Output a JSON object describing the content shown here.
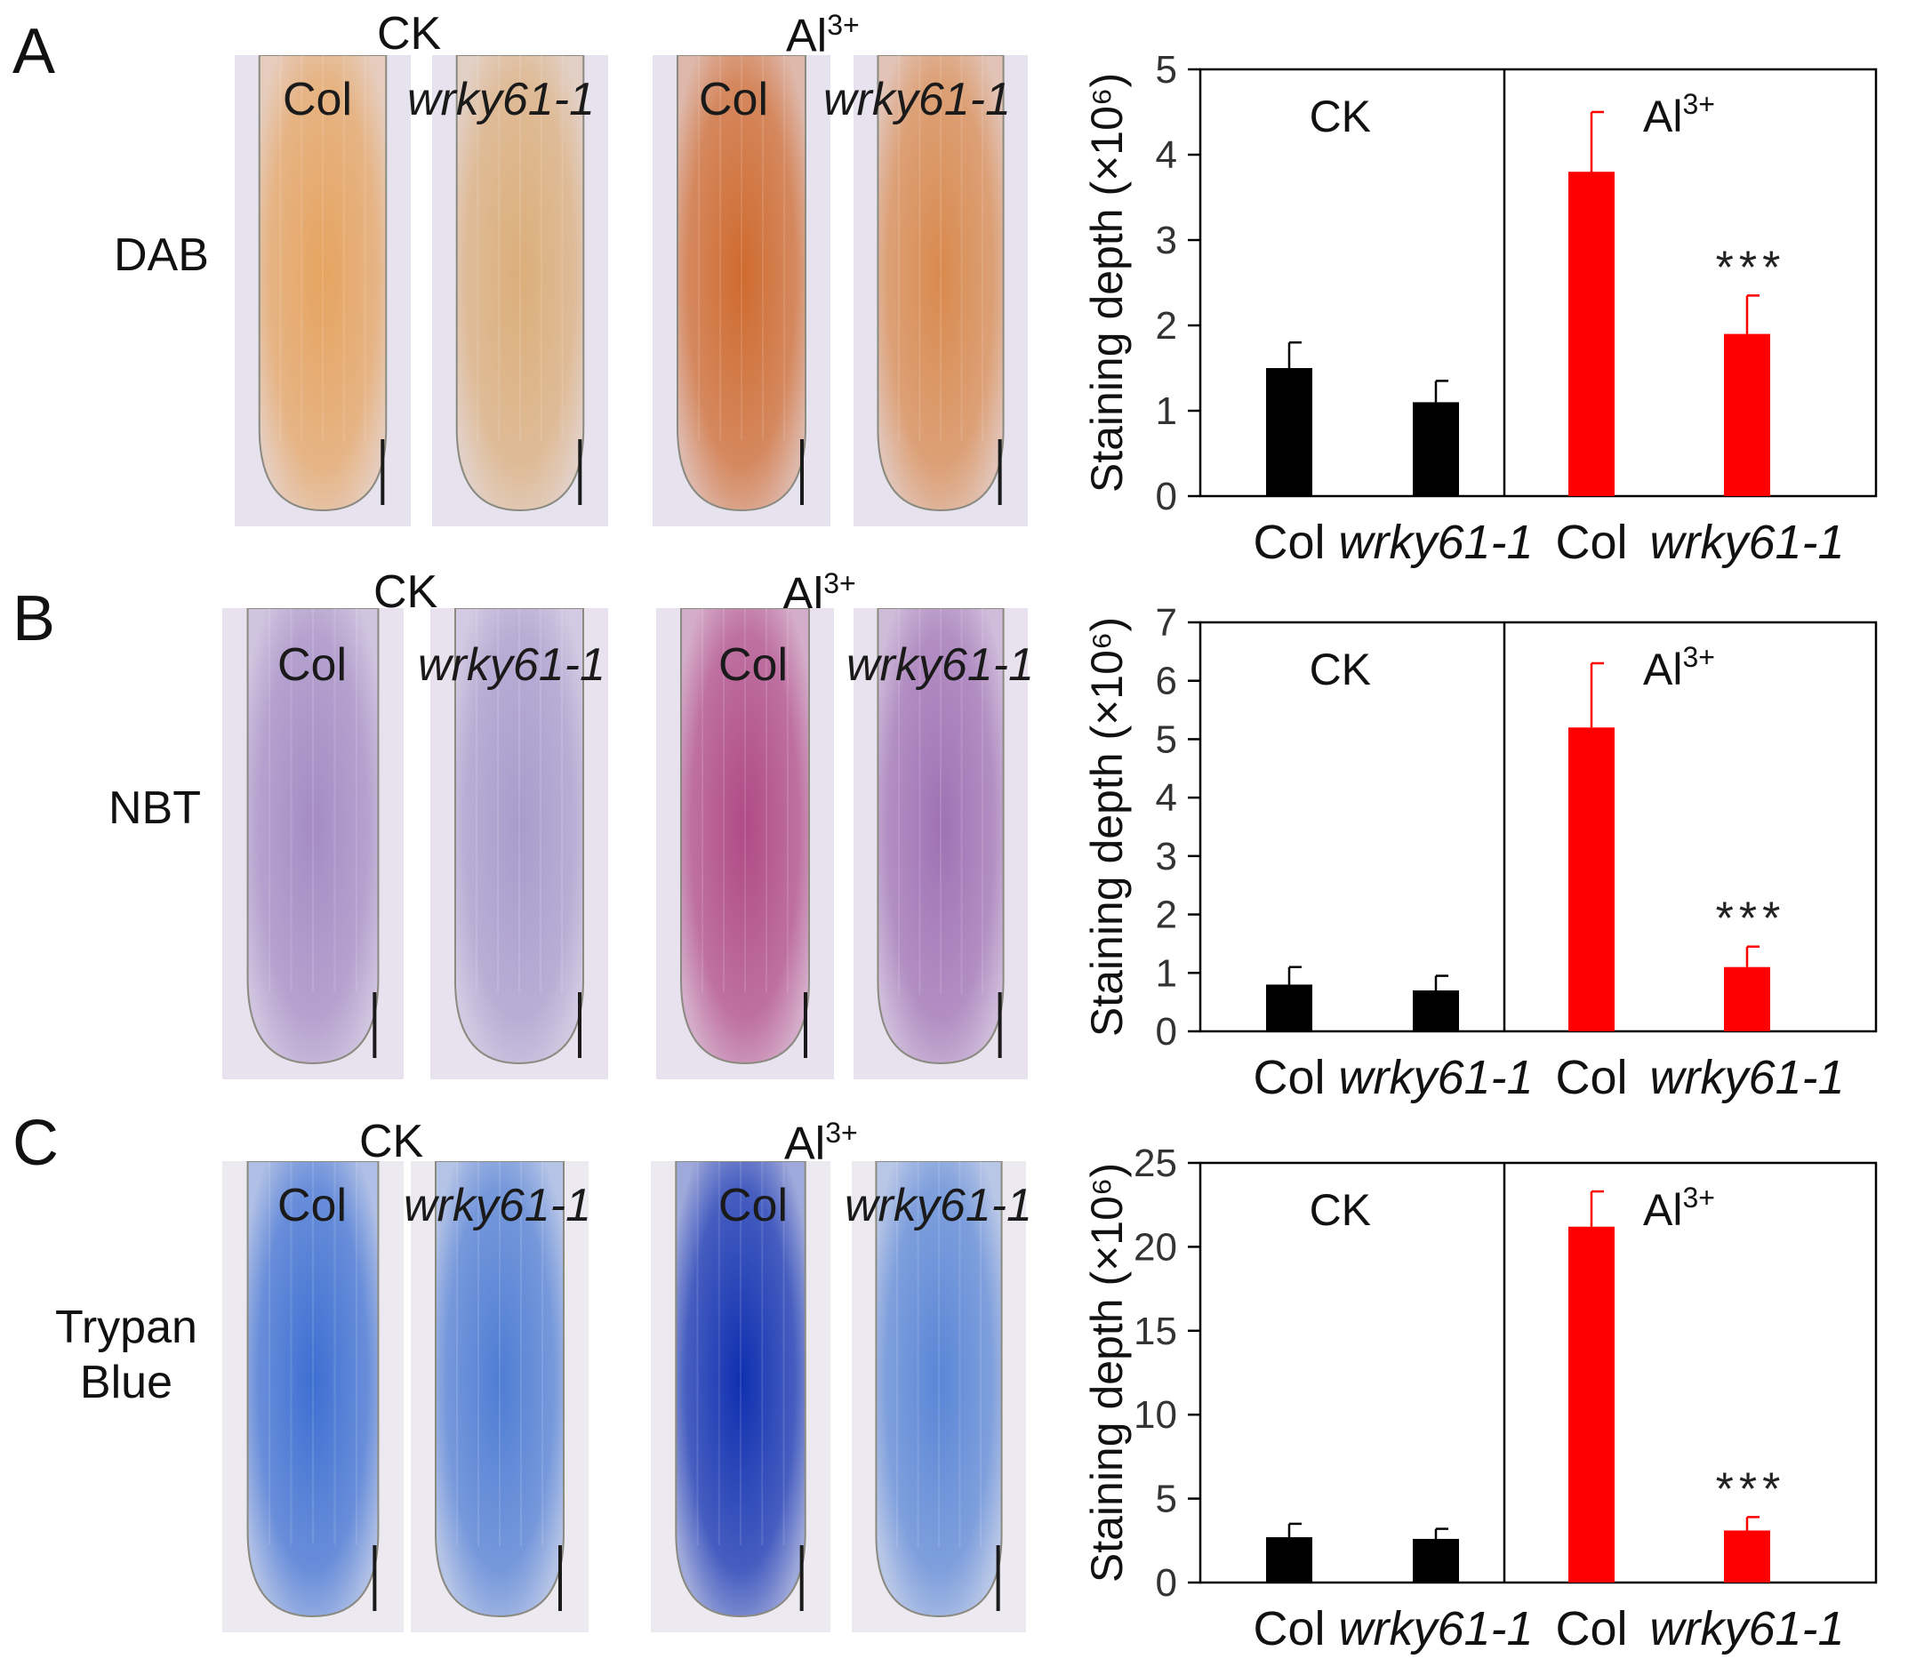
{
  "figure": {
    "panels": [
      {
        "letter": "A",
        "stain": "DAB",
        "conditions": [
          {
            "label": "CK"
          },
          {
            "label": "Al",
            "sup": "3+"
          }
        ],
        "genotypes": [
          "Col",
          "wrky61-1",
          "Col",
          "wrky61-1"
        ],
        "image_palette": {
          "background": "#e6e2ee",
          "ck_col": "#e6a460",
          "ck_mut": "#dcae7a",
          "al_col": "#cf6a2e",
          "al_mut": "#d98a4e",
          "scale_bar": "#1a1a1a"
        }
      },
      {
        "letter": "B",
        "stain": "NBT",
        "conditions": [
          {
            "label": "CK"
          },
          {
            "label": "Al",
            "sup": "3+"
          }
        ],
        "genotypes": [
          "Col",
          "wrky61-1",
          "Col",
          "wrky61-1"
        ],
        "image_palette": {
          "background": "#e8e2ee",
          "ck_col": "#a48cc4",
          "ck_mut": "#a89ccc",
          "al_col": "#b04a86",
          "al_mut": "#a072b4",
          "scale_bar": "#1a1a1a"
        }
      },
      {
        "letter": "C",
        "stain_lines": [
          "Trypan",
          "Blue"
        ],
        "conditions": [
          {
            "label": "CK"
          },
          {
            "label": "Al",
            "sup": "3+"
          }
        ],
        "genotypes": [
          "Col",
          "wrky61-1",
          "Col",
          "wrky61-1"
        ],
        "image_palette": {
          "background": "#eceaf0",
          "ck_col": "#3d6fd2",
          "ck_mut": "#4f7dd4",
          "al_col": "#0f2fb0",
          "al_mut": "#5a86d6",
          "scale_bar": "#1a1a1a"
        }
      }
    ]
  },
  "chart_data": [
    {
      "type": "bar",
      "panel": "A",
      "ylabel": "Staining depth (×10⁶)",
      "ylim": [
        0,
        5
      ],
      "yticks": [
        0,
        1,
        2,
        3,
        4,
        5
      ],
      "groups": [
        {
          "label": "CK"
        },
        {
          "label": "Al",
          "sup": "3+"
        }
      ],
      "categories": [
        "Col",
        "wrky61-1",
        "Col",
        "wrky61-1"
      ],
      "values": [
        1.5,
        1.1,
        3.8,
        1.9
      ],
      "errors": [
        0.3,
        0.25,
        0.7,
        0.45
      ],
      "colors": [
        "#000000",
        "#000000",
        "#ff0000",
        "#ff0000"
      ],
      "annotations": [
        "",
        "",
        "",
        "***"
      ]
    },
    {
      "type": "bar",
      "panel": "B",
      "ylabel": "Staining depth (×10⁶)",
      "ylim": [
        0,
        7
      ],
      "yticks": [
        0,
        1,
        2,
        3,
        4,
        5,
        6,
        7
      ],
      "groups": [
        {
          "label": "CK"
        },
        {
          "label": "Al",
          "sup": "3+"
        }
      ],
      "categories": [
        "Col",
        "wrky61-1",
        "Col",
        "wrky61-1"
      ],
      "values": [
        0.8,
        0.7,
        5.2,
        1.1
      ],
      "errors": [
        0.3,
        0.25,
        1.1,
        0.35
      ],
      "colors": [
        "#000000",
        "#000000",
        "#ff0000",
        "#ff0000"
      ],
      "annotations": [
        "",
        "",
        "",
        "***"
      ]
    },
    {
      "type": "bar",
      "panel": "C",
      "ylabel": "Staining depth (×10⁶)",
      "ylim": [
        0,
        25
      ],
      "yticks": [
        0,
        5,
        10,
        15,
        20,
        25
      ],
      "groups": [
        {
          "label": "CK"
        },
        {
          "label": "Al",
          "sup": "3+"
        }
      ],
      "categories": [
        "Col",
        "wrky61-1",
        "Col",
        "wrky61-1"
      ],
      "values": [
        2.7,
        2.6,
        21.2,
        3.1
      ],
      "errors": [
        0.8,
        0.6,
        2.1,
        0.8
      ],
      "colors": [
        "#000000",
        "#000000",
        "#ff0000",
        "#ff0000"
      ],
      "annotations": [
        "",
        "",
        "",
        "***"
      ]
    }
  ]
}
